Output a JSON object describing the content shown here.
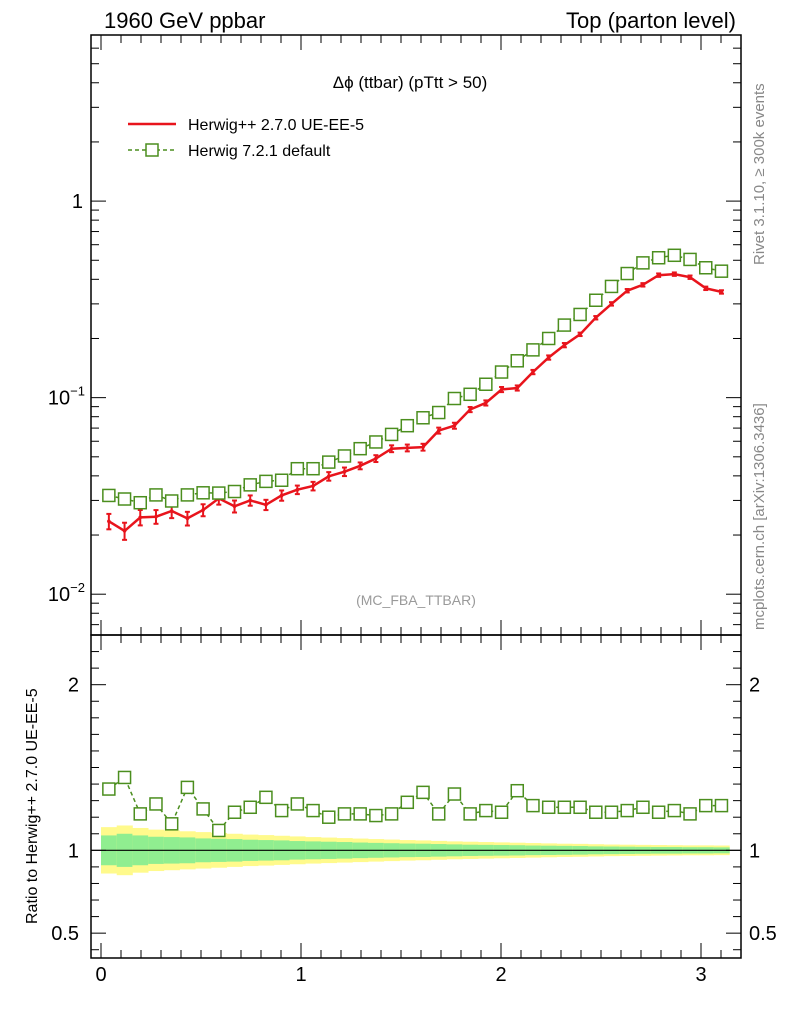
{
  "header": {
    "left": "1960 GeV ppbar",
    "right": "Top (parton level)"
  },
  "side_labels": {
    "rivet": "Rivet 3.1.10, ≥ 300k events",
    "mcplots": "mcplots.cern.ch [arXiv:1306.3436]"
  },
  "chart_data": [
    {
      "type": "line",
      "panel": "main",
      "title": "Δϕ (ttbar) (pTtt > 50)",
      "analysis_tag": "(MC_FBA_TTBAR)",
      "yscale": "log",
      "xlim": [
        -0.05,
        3.2
      ],
      "ylim": [
        0.0062,
        7.0
      ],
      "y_ticks": [
        {
          "value": 0.01,
          "label": "10",
          "exp": "−2"
        },
        {
          "value": 0.1,
          "label": "10",
          "exp": "−1"
        },
        {
          "value": 1,
          "label": "1",
          "exp": ""
        }
      ],
      "legend_position": "top-left",
      "series": [
        {
          "name": "Herwig++ 2.7.0 UE-EE-5",
          "color": "#e8141c",
          "style": "solid-with-errorbars",
          "x": [
            0.0393,
            0.1178,
            0.1963,
            0.2749,
            0.3534,
            0.432,
            0.5105,
            0.589,
            0.6676,
            0.7461,
            0.8247,
            0.9032,
            0.9817,
            1.0603,
            1.1388,
            1.2174,
            1.2959,
            1.3744,
            1.453,
            1.5315,
            1.6101,
            1.6886,
            1.7671,
            1.8457,
            1.9242,
            2.0028,
            2.0813,
            2.1598,
            2.2384,
            2.3169,
            2.3955,
            2.474,
            2.5525,
            2.6311,
            2.7096,
            2.7882,
            2.8667,
            2.9452,
            3.0238,
            3.1023
          ],
          "y": [
            0.0235,
            0.021,
            0.0246,
            0.0248,
            0.0265,
            0.0243,
            0.0268,
            0.0307,
            0.028,
            0.03,
            0.0285,
            0.0318,
            0.034,
            0.0355,
            0.0398,
            0.042,
            0.045,
            0.049,
            0.055,
            0.0555,
            0.056,
            0.068,
            0.072,
            0.087,
            0.094,
            0.11,
            0.112,
            0.135,
            0.16,
            0.185,
            0.21,
            0.255,
            0.3,
            0.35,
            0.375,
            0.42,
            0.425,
            0.41,
            0.36,
            0.345
          ],
          "rel_err": [
            0.09,
            0.1,
            0.09,
            0.08,
            0.08,
            0.08,
            0.07,
            0.07,
            0.07,
            0.06,
            0.06,
            0.06,
            0.05,
            0.05,
            0.05,
            0.05,
            0.04,
            0.04,
            0.04,
            0.04,
            0.04,
            0.035,
            0.035,
            0.03,
            0.03,
            0.03,
            0.03,
            0.025,
            0.025,
            0.025,
            0.02,
            0.02,
            0.02,
            0.02,
            0.02,
            0.02,
            0.02,
            0.02,
            0.02,
            0.02
          ]
        },
        {
          "name": "Herwig 7.2.1 default",
          "color": "#4b8e1e",
          "style": "dashed-open-squares",
          "x": [
            0.0393,
            0.1178,
            0.1963,
            0.2749,
            0.3534,
            0.432,
            0.5105,
            0.589,
            0.6676,
            0.7461,
            0.8247,
            0.9032,
            0.9817,
            1.0603,
            1.1388,
            1.2174,
            1.2959,
            1.3744,
            1.453,
            1.5315,
            1.6101,
            1.6886,
            1.7671,
            1.8457,
            1.9242,
            2.0028,
            2.0813,
            2.1598,
            2.2384,
            2.3169,
            2.3955,
            2.474,
            2.5525,
            2.6311,
            2.7096,
            2.7882,
            2.8667,
            2.9452,
            3.0238,
            3.1023
          ],
          "y": [
            0.0318,
            0.0305,
            0.0292,
            0.032,
            0.0298,
            0.032,
            0.0328,
            0.0327,
            0.0333,
            0.036,
            0.0375,
            0.038,
            0.0435,
            0.0435,
            0.047,
            0.0505,
            0.055,
            0.0595,
            0.065,
            0.072,
            0.079,
            0.084,
            0.099,
            0.104,
            0.117,
            0.135,
            0.154,
            0.175,
            0.2,
            0.234,
            0.265,
            0.313,
            0.368,
            0.428,
            0.485,
            0.515,
            0.53,
            0.505,
            0.458,
            0.44
          ]
        }
      ]
    },
    {
      "type": "line",
      "panel": "ratio",
      "ylabel": "Ratio to Herwig++ 2.7.0 UE-EE-5",
      "xlim": [
        -0.05,
        3.2
      ],
      "ylim": [
        0.35,
        2.3
      ],
      "x_ticks": [
        0,
        1,
        2,
        3
      ],
      "y_ticks": [
        0.5,
        1,
        2
      ],
      "reference_line": 1,
      "band_colors": {
        "stat": "#90ee90",
        "total": "#fffa8c"
      },
      "x": [
        0.0393,
        0.1178,
        0.1963,
        0.2749,
        0.3534,
        0.432,
        0.5105,
        0.589,
        0.6676,
        0.7461,
        0.8247,
        0.9032,
        0.9817,
        1.0603,
        1.1388,
        1.2174,
        1.2959,
        1.3744,
        1.453,
        1.5315,
        1.6101,
        1.6886,
        1.7671,
        1.8457,
        1.9242,
        2.0028,
        2.0813,
        2.1598,
        2.2384,
        2.3169,
        2.3955,
        2.474,
        2.5525,
        2.6311,
        2.7096,
        2.7882,
        2.8667,
        2.9452,
        3.0238,
        3.1023
      ],
      "band_inner": [
        0.09,
        0.1,
        0.09,
        0.082,
        0.08,
        0.078,
        0.072,
        0.07,
        0.068,
        0.064,
        0.062,
        0.06,
        0.056,
        0.054,
        0.052,
        0.05,
        0.047,
        0.045,
        0.043,
        0.041,
        0.04,
        0.038,
        0.036,
        0.034,
        0.033,
        0.032,
        0.031,
        0.029,
        0.028,
        0.027,
        0.026,
        0.024,
        0.023,
        0.022,
        0.021,
        0.02,
        0.02,
        0.019,
        0.019,
        0.018
      ],
      "band_outer": [
        0.14,
        0.15,
        0.135,
        0.125,
        0.12,
        0.115,
        0.11,
        0.105,
        0.1,
        0.095,
        0.092,
        0.088,
        0.084,
        0.08,
        0.077,
        0.074,
        0.071,
        0.068,
        0.065,
        0.062,
        0.06,
        0.057,
        0.054,
        0.052,
        0.05,
        0.048,
        0.046,
        0.044,
        0.042,
        0.04,
        0.039,
        0.037,
        0.035,
        0.034,
        0.033,
        0.032,
        0.031,
        0.03,
        0.03,
        0.029
      ],
      "series": [
        {
          "name": "Herwig 7.2.1 default",
          "color": "#4b8e1e",
          "values": [
            1.37,
            1.44,
            1.22,
            1.28,
            1.16,
            1.38,
            1.25,
            1.12,
            1.23,
            1.26,
            1.32,
            1.24,
            1.28,
            1.24,
            1.2,
            1.22,
            1.22,
            1.21,
            1.22,
            1.29,
            1.35,
            1.22,
            1.34,
            1.22,
            1.24,
            1.23,
            1.36,
            1.27,
            1.26,
            1.26,
            1.26,
            1.23,
            1.23,
            1.24,
            1.26,
            1.23,
            1.24,
            1.22,
            1.27,
            1.27
          ]
        }
      ]
    }
  ]
}
